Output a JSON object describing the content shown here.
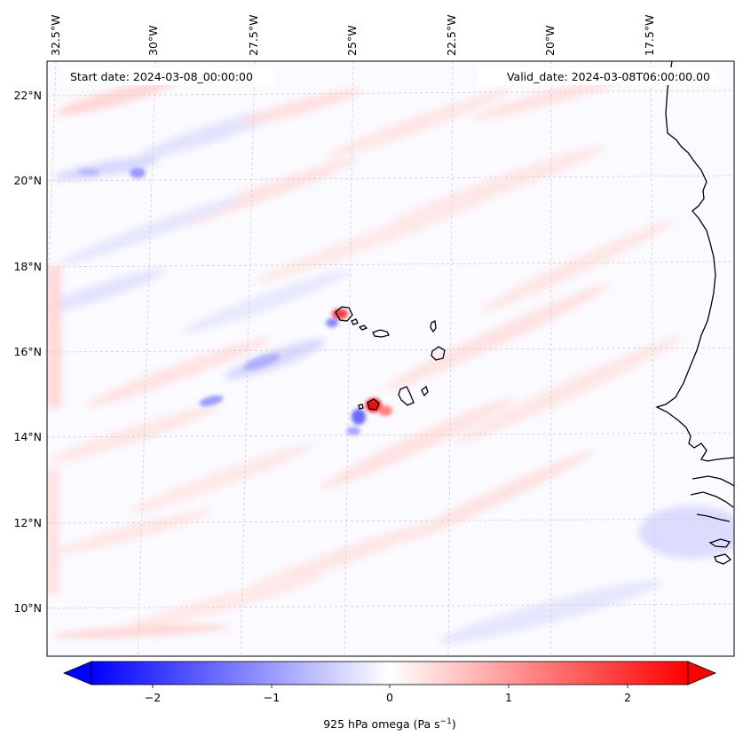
{
  "map": {
    "start_date": "Start date: 2024-03-08_00:00:00",
    "valid_date": "Valid_date: 2024-03-08T06:00:00.00",
    "lon_ticks": [
      "32.5°W",
      "30°W",
      "27.5°W",
      "25°W",
      "22.5°W",
      "20°W",
      "17.5°W"
    ],
    "lat_ticks": [
      "22°N",
      "20°N",
      "18°N",
      "16°N",
      "14°N",
      "12°N",
      "10°N"
    ],
    "extent_lon": [
      -33.0,
      -15.5
    ],
    "extent_lat": [
      8.9,
      22.8
    ],
    "gridlines": true
  },
  "colorbar": {
    "ticks": [
      "−2",
      "−1",
      "0",
      "1",
      "2"
    ],
    "tick_values": [
      -2,
      -1,
      0,
      1,
      2
    ],
    "range": [
      -2.6,
      2.6
    ],
    "label_main": "925 hPa omega (Pa s",
    "label_sup": "−1",
    "label_end": ")",
    "colors": {
      "negative": "#0000ff",
      "zero": "#ffffff",
      "positive": "#ff0000"
    }
  },
  "features": {
    "vertical_motion_patches": [
      {
        "lon": -24.6,
        "lat": 16.8,
        "value": 2.2
      },
      {
        "lon": -24.0,
        "lat": 14.7,
        "value": 2.4
      },
      {
        "lon": -24.4,
        "lat": 14.4,
        "value": -1.3
      },
      {
        "lon": -29.8,
        "lat": 20.1,
        "value": -0.7
      },
      {
        "lon": -26.8,
        "lat": 15.4,
        "value": -0.4
      },
      {
        "lon": -28.0,
        "lat": 14.7,
        "value": -0.5
      }
    ]
  }
}
